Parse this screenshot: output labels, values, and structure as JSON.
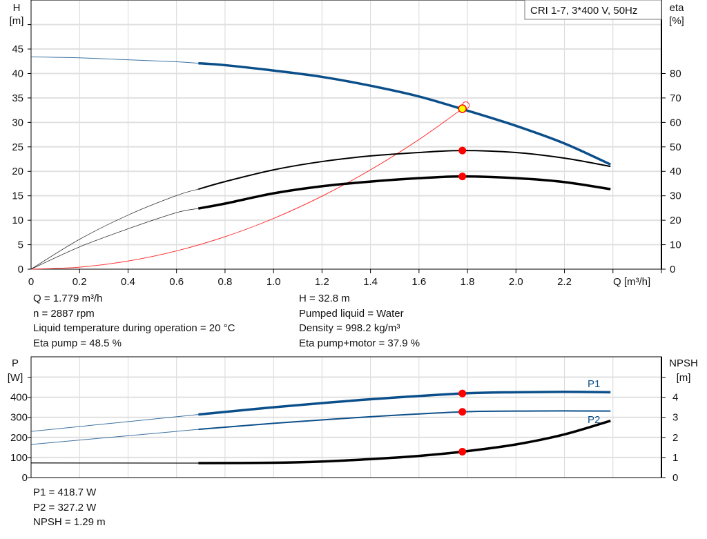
{
  "chart_data": [
    {
      "type": "line",
      "title": "CRI 1-7, 3*400 V, 50Hz",
      "xlabel": "Q [m³/h]",
      "ylabel_left": {
        "name": "H",
        "unit": "[m]"
      },
      "ylabel_right": {
        "name": "eta",
        "unit": "[%]"
      },
      "xlim": [
        0,
        2.6
      ],
      "ylim_left": [
        0,
        55
      ],
      "ylim_right": [
        0,
        110
      ],
      "x_ticks": [
        "0",
        "0.2",
        "0.4",
        "0.6",
        "0.8",
        "1.0",
        "1.2",
        "1.4",
        "1.6",
        "1.8",
        "2.0",
        "2.2"
      ],
      "y_ticks_left": [
        "0",
        "5",
        "10",
        "15",
        "20",
        "25",
        "30",
        "35",
        "40",
        "45"
      ],
      "y_ticks_right": [
        "0",
        "10",
        "20",
        "30",
        "40",
        "50",
        "60",
        "70",
        "80"
      ],
      "grid": true,
      "colors": {
        "head": "#0b4f8a",
        "eta": "#000000",
        "system": "#ff3030",
        "point": "#ff0000",
        "duty": "#ffff00"
      },
      "series": [
        {
          "key": "head",
          "axis": "left",
          "x": [
            0,
            0.2,
            0.4,
            0.6,
            0.69,
            0.8,
            1.0,
            1.2,
            1.4,
            1.6,
            1.8,
            2.0,
            2.2,
            2.39
          ],
          "values": [
            43.4,
            43.2,
            42.8,
            42.4,
            42.1,
            41.7,
            40.6,
            39.3,
            37.5,
            35.3,
            32.4,
            29.3,
            25.7,
            21.4
          ]
        },
        {
          "key": "eta_pump",
          "axis": "right",
          "x": [
            0,
            0.2,
            0.4,
            0.6,
            0.69,
            0.8,
            1.0,
            1.2,
            1.4,
            1.6,
            1.779,
            2.0,
            2.2,
            2.39
          ],
          "values": [
            0,
            12.2,
            22.1,
            30.1,
            32.7,
            35.8,
            40.6,
            44.0,
            46.3,
            47.7,
            48.5,
            47.7,
            45.4,
            42.0
          ]
        },
        {
          "key": "eta_pump_motor",
          "axis": "right",
          "x": [
            0,
            0.2,
            0.4,
            0.6,
            0.69,
            0.8,
            1.0,
            1.2,
            1.4,
            1.6,
            1.779,
            2.0,
            2.2,
            2.39
          ],
          "values": [
            0,
            9.1,
            16.5,
            23.1,
            24.8,
            26.8,
            31.0,
            33.9,
            35.8,
            37.2,
            37.9,
            37.2,
            35.6,
            32.7
          ]
        },
        {
          "key": "system",
          "axis": "left",
          "x": [
            0,
            0.2,
            0.4,
            0.6,
            0.8,
            1.0,
            1.2,
            1.4,
            1.6,
            1.779
          ],
          "values": [
            0,
            0.41,
            1.66,
            3.73,
            6.63,
            10.36,
            14.92,
            20.3,
            26.5,
            32.8
          ]
        }
      ],
      "duty_point": {
        "q": 1.779,
        "h": 32.8,
        "eta_pump": 48.5,
        "eta_pump_motor": 37.9
      }
    },
    {
      "type": "line",
      "ylabel_left": {
        "name": "P",
        "unit": "[W]"
      },
      "ylabel_right": {
        "name": "NPSH",
        "unit": "[m]"
      },
      "xlim": [
        0,
        2.6
      ],
      "ylim_left": [
        0,
        500
      ],
      "ylim_right": [
        0,
        5
      ],
      "y_ticks_left": [
        "0",
        "100",
        "200",
        "300",
        "400"
      ],
      "y_ticks_right": [
        "0",
        "1",
        "2",
        "3",
        "4"
      ],
      "grid": true,
      "series": [
        {
          "key": "p1",
          "name": "P1",
          "axis": "left",
          "x": [
            0,
            0.69,
            1.0,
            1.4,
            1.779,
            2.0,
            2.2,
            2.39
          ],
          "values": [
            230,
            314,
            350,
            390,
            418.7,
            425,
            427,
            425
          ]
        },
        {
          "key": "p2",
          "name": "P2",
          "axis": "left",
          "x": [
            0,
            0.69,
            1.0,
            1.4,
            1.779,
            2.0,
            2.2,
            2.39
          ],
          "values": [
            165,
            240,
            270,
            303,
            327.2,
            331,
            332,
            331
          ]
        },
        {
          "key": "npsh",
          "axis": "right",
          "x": [
            0,
            0.69,
            1.0,
            1.2,
            1.4,
            1.6,
            1.779,
            2.0,
            2.2,
            2.39
          ],
          "values": [
            0.73,
            0.72,
            0.74,
            0.8,
            0.92,
            1.08,
            1.29,
            1.65,
            2.15,
            2.83
          ]
        }
      ],
      "duty_point": {
        "q": 1.779,
        "p1": 418.7,
        "p2": 327.2,
        "npsh": 1.29
      }
    }
  ],
  "info": {
    "left": [
      "Q = 1.779 m³/h",
      "n = 2887 rpm",
      "Liquid temperature during operation = 20 °C",
      "Eta pump = 48.5 %"
    ],
    "right": [
      "H = 32.8 m",
      "Pumped liquid = Water",
      "Density = 998.2 kg/m³",
      "Eta pump+motor = 37.9 %"
    ],
    "bottom": [
      "P1 = 418.7 W",
      "P2 = 327.2 W",
      "NPSH = 1.29 m"
    ]
  }
}
